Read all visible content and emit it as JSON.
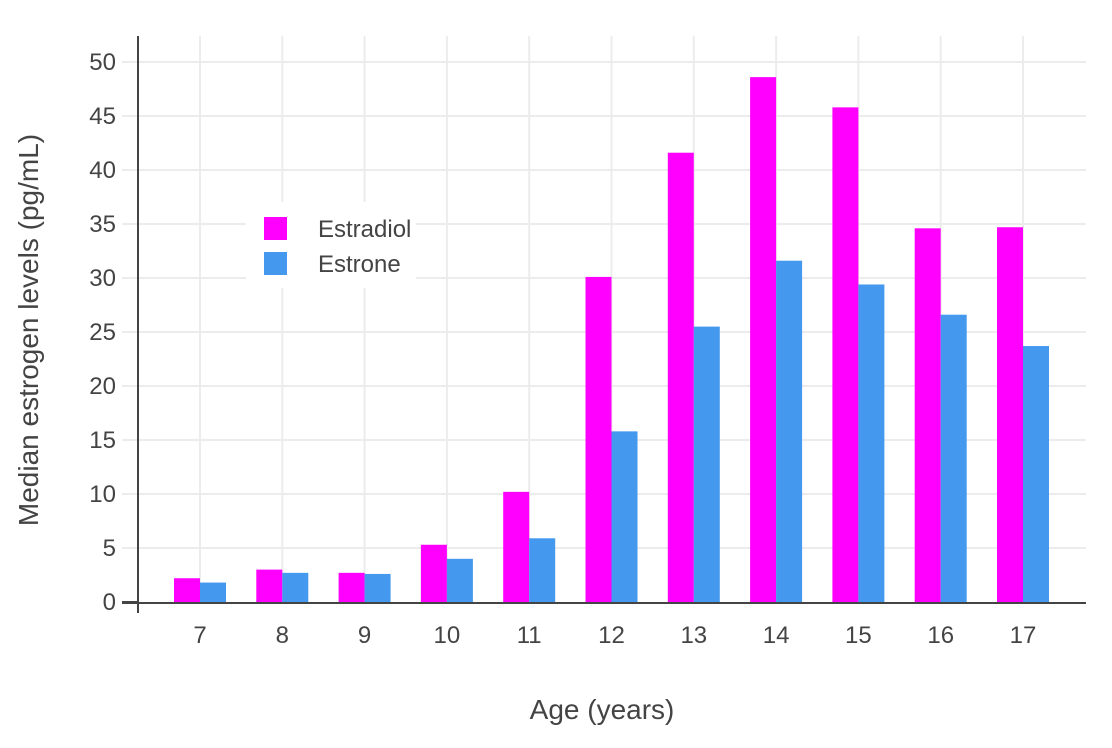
{
  "chart_data": {
    "type": "bar",
    "categories": [
      7,
      8,
      9,
      10,
      11,
      12,
      13,
      14,
      15,
      16,
      17
    ],
    "series": [
      {
        "name": "Estradiol",
        "color": "#FF00FF",
        "values": [
          2.2,
          3.0,
          2.7,
          5.3,
          10.2,
          30.1,
          41.6,
          48.6,
          45.8,
          34.6,
          34.7
        ]
      },
      {
        "name": "Estrone",
        "color": "#4499EE",
        "values": [
          1.8,
          2.7,
          2.6,
          4.0,
          5.9,
          15.8,
          25.5,
          31.6,
          29.4,
          26.6,
          23.7
        ]
      }
    ],
    "title": "",
    "xlabel": "Age (years)",
    "ylabel": "Median estrogen levels (pg/mL)",
    "ylim": [
      0,
      52
    ],
    "yticks": [
      0,
      5,
      10,
      15,
      20,
      25,
      30,
      35,
      40,
      45,
      50
    ],
    "grid": true,
    "barmode": "group",
    "legend_position": "inside-top-left"
  },
  "style": {
    "background_color": "#ffffff",
    "grid_color": "#ECECEC",
    "axis_line_color": "#444444",
    "text_color": "#444444",
    "legend_background": "#ffffff"
  }
}
